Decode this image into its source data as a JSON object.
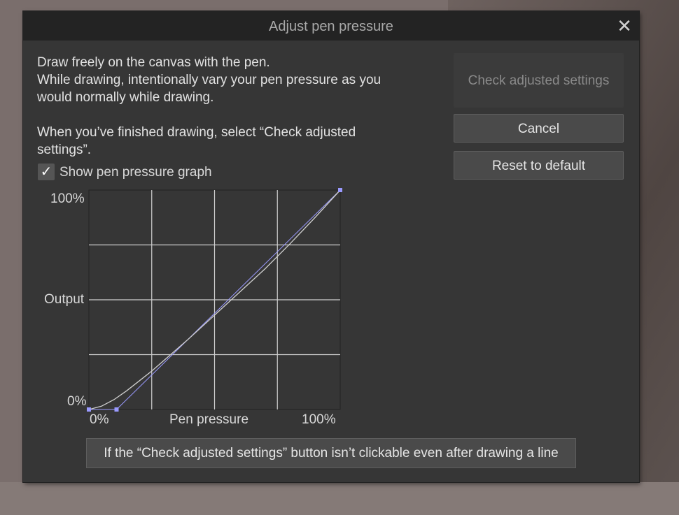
{
  "dialog": {
    "title": "Adjust pen pressure",
    "close_icon": "close-x",
    "instructions": [
      "Draw freely on the canvas with the pen.",
      "While drawing, intentionally vary your pen pressure as you",
      "would normally while drawing."
    ],
    "finish_text": [
      "When you’ve finished drawing, select “Check adjusted",
      "settings”."
    ],
    "show_graph_label": "Show pen pressure graph",
    "show_graph_checked": true,
    "buttons": {
      "check": "Check adjusted settings",
      "cancel": "Cancel",
      "reset": "Reset to default"
    },
    "help_button": "If the “Check adjusted settings” button isn’t clickable even after drawing a line"
  },
  "chart_data": {
    "type": "line",
    "xlabel": "Pen pressure",
    "ylabel": "Output",
    "x_ticks": [
      "0%",
      "100%"
    ],
    "y_ticks": [
      "0%",
      "100%"
    ],
    "xlim": [
      0,
      100
    ],
    "ylim": [
      0,
      100
    ],
    "grid": true,
    "control_points": [
      [
        0,
        0
      ],
      [
        11,
        0
      ],
      [
        100,
        100
      ]
    ],
    "curve": [
      [
        0,
        0
      ],
      [
        5,
        1.5
      ],
      [
        10,
        4.5
      ],
      [
        15,
        8.5
      ],
      [
        20,
        13
      ],
      [
        25,
        17.5
      ],
      [
        30,
        22.5
      ],
      [
        40,
        32.5
      ],
      [
        50,
        43
      ],
      [
        60,
        53.5
      ],
      [
        70,
        64
      ],
      [
        80,
        75.5
      ],
      [
        90,
        87.5
      ],
      [
        100,
        100
      ]
    ],
    "colors": {
      "curve": "#cfcfcf",
      "control": "#9a9aff",
      "grid": "#d0d0d0"
    }
  }
}
